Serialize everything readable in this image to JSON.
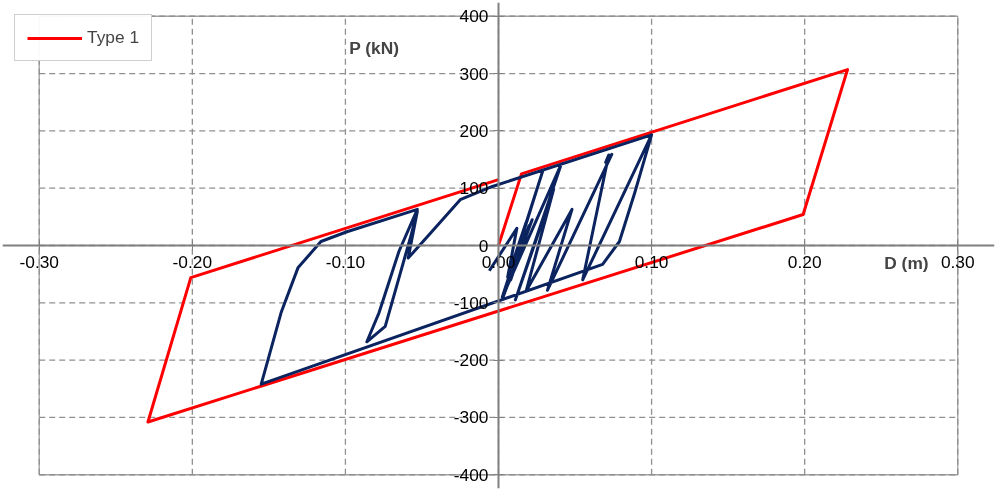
{
  "chart_data": {
    "type": "line",
    "xlabel": "D (m)",
    "ylabel": "P (kN)",
    "xlim": [
      -0.3,
      0.3
    ],
    "ylim": [
      -400,
      400
    ],
    "xticks": [
      {
        "value": -0.3,
        "label": "-0.30"
      },
      {
        "value": -0.2,
        "label": "-0.20"
      },
      {
        "value": -0.1,
        "label": "-0.10"
      },
      {
        "value": 0,
        "label": "0.00"
      },
      {
        "value": 0.1,
        "label": "0.10"
      },
      {
        "value": 0.2,
        "label": "0.20"
      },
      {
        "value": 0.3,
        "label": "0.30"
      }
    ],
    "yticks": [
      -400,
      -300,
      -200,
      -100,
      0,
      100,
      200,
      300,
      400
    ],
    "grid": true,
    "legend": "top left",
    "line_style": "solid",
    "marker": "none",
    "series": [
      {
        "name": "Type 1",
        "color": "#ff0000",
        "x": [
          0,
          0.015,
          0.228,
          0.199,
          -0.229,
          -0.201,
          0
        ],
        "values": [
          0,
          125,
          307,
          54,
          -308,
          -56,
          115
        ]
      },
      {
        "color": "#0b2460",
        "x": [
          -0.006,
          0.012,
          0.006,
          0.018,
          0.008,
          0.02,
          0.005,
          0.022,
          0.003,
          0.029,
          0.0025,
          0.041,
          0.011,
          0.036,
          0.018,
          0.048,
          0.032,
          0.074,
          0.07,
          0.072,
          0.055,
          0.1,
          0.089,
          0.079,
          0.068,
          -0.155,
          -0.142,
          -0.131,
          -0.116,
          -0.099,
          -0.053,
          -0.065,
          -0.078,
          -0.086,
          -0.074,
          -0.057,
          -0.053,
          -0.059,
          -0.042,
          -0.025,
          -0.004,
          0.1
        ],
        "values": [
          -44,
          30,
          -55,
          40,
          -60,
          35,
          -70,
          45,
          -90,
          131,
          -90,
          142,
          -95,
          98,
          -80,
          63,
          -78,
          159,
          145,
          158,
          -60,
          193,
          92,
          7,
          -33,
          -242,
          -117,
          -39,
          7,
          24,
          63,
          -10,
          -117,
          -168,
          -141,
          19,
          60,
          -22,
          29,
          80,
          103,
          193
        ]
      }
    ]
  }
}
